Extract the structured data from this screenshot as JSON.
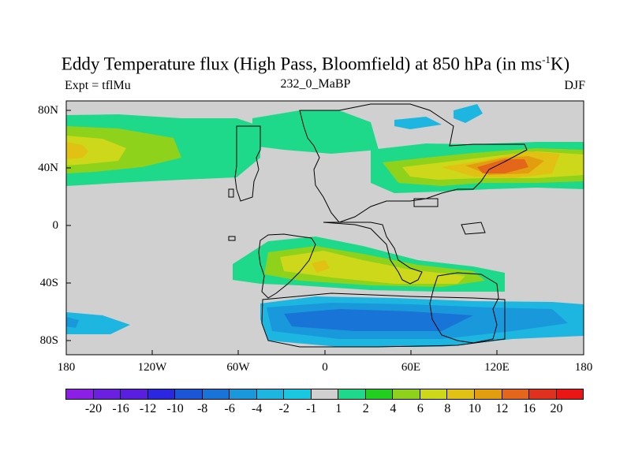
{
  "title": {
    "main": "Eddy Temperature flux (High Pass, Bloomfield) at 850 hPa (in ms",
    "superscript": "-1",
    "suffix": "K)"
  },
  "subtitle": {
    "left": "Expt = tflMu",
    "center": "232_0_MaBP",
    "right": "DJF"
  },
  "axes": {
    "x_ticks": [
      "180",
      "120W",
      "60W",
      "0",
      "60E",
      "120E",
      "180"
    ],
    "y_ticks": [
      "80N",
      "40N",
      "0",
      "40S",
      "80S"
    ]
  },
  "colorbar": {
    "labels": [
      "-20",
      "-16",
      "-12",
      "-10",
      "-8",
      "-6",
      "-4",
      "-2",
      "-1",
      "1",
      "2",
      "4",
      "6",
      "8",
      "10",
      "12",
      "16",
      "20"
    ],
    "colors": [
      "#8c1fe6",
      "#6b1fe0",
      "#5a1ee0",
      "#2b26e0",
      "#1a56d6",
      "#1874d6",
      "#1a98dc",
      "#1cb6e0",
      "#19c8e0",
      "#d0d0d0",
      "#1ed98a",
      "#22cf1e",
      "#8ed21c",
      "#cdd81a",
      "#e1c114",
      "#e39e0f",
      "#e4661a",
      "#e0301e",
      "#ea1515"
    ]
  },
  "map": {
    "land_color": "#d0d0d0",
    "outline_color": "#000000"
  }
}
